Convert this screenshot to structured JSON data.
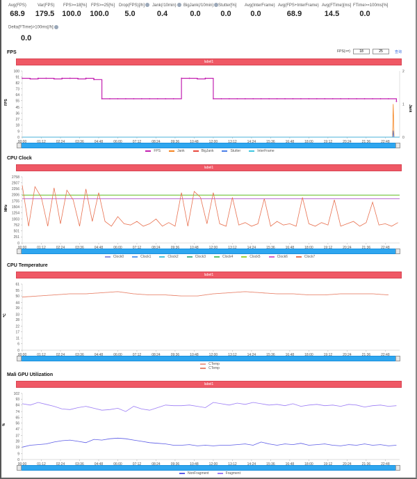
{
  "stats": [
    {
      "label": "Avg(FPS)",
      "value": "68.9",
      "info": false
    },
    {
      "label": "Var(FPS)",
      "value": "179.5",
      "info": false
    },
    {
      "label": "FPS>=18[%]",
      "value": "100.0",
      "info": false
    },
    {
      "label": "FPS>=25[%]",
      "value": "100.0",
      "info": false
    },
    {
      "label": "Drop(FPS)[/h]",
      "value": "5.0",
      "info": true
    },
    {
      "label": "Jank(/10min)",
      "value": "0.4",
      "info": true
    },
    {
      "label": "BigJank(/10min)",
      "value": "0.0",
      "info": true
    },
    {
      "label": "Stutter[%]",
      "value": "0.0",
      "info": false
    },
    {
      "label": "Avg(InterFrame)",
      "value": "0.0",
      "info": false
    },
    {
      "label": "Avg(FPS+InterFrame)",
      "value": "68.9",
      "info": false
    },
    {
      "label": "Avg(FTime)[ms]",
      "value": "14.5",
      "info": false
    },
    {
      "label": "FTime>=100ms[%]",
      "value": "0.0",
      "info": false
    }
  ],
  "delta": {
    "label": "Delta(FTime)>100ms[/h]",
    "value": "0.0"
  },
  "fps_control": {
    "label": "FPS(>=)",
    "value1": "18",
    "value2": "25",
    "link": "查询"
  },
  "chart_data": [
    {
      "type": "line",
      "title": "FPS",
      "band_label": "label1",
      "ylabel": "FPS",
      "ylim": [
        0,
        100
      ],
      "yticks": [
        0,
        9,
        18,
        27,
        36,
        45,
        55,
        64,
        73,
        82,
        91,
        100
      ],
      "y2label": "Jank",
      "y2lim": [
        0,
        2
      ],
      "y2ticks": [
        0,
        1,
        2
      ],
      "xlim": [
        0,
        1422
      ],
      "xstep": 30,
      "xticks": [
        "00:00",
        "01:12",
        "02:24",
        "03:36",
        "04:48",
        "06:00",
        "07:12",
        "08:24",
        "09:36",
        "10:48",
        "12:00",
        "13:12",
        "14:24",
        "15:36",
        "16:48",
        "18:00",
        "19:12",
        "20:24",
        "21:36",
        "22:48"
      ],
      "series": [
        {
          "name": "FPS",
          "color": "#c21fb0",
          "marker": true,
          "values": [
            89,
            88,
            89,
            89,
            88,
            89,
            89,
            88,
            89,
            87,
            58,
            58,
            58,
            58,
            58,
            58,
            58,
            58,
            58,
            58,
            89,
            89,
            88,
            89,
            58,
            58,
            58,
            58,
            58,
            58,
            58,
            58,
            58,
            58,
            58,
            58,
            58,
            58,
            58,
            58,
            58,
            58,
            58,
            58,
            58,
            58,
            58,
            54
          ]
        },
        {
          "name": "Jank",
          "color": "#f5841f",
          "axis": "y2",
          "x": [
            0,
            1395,
            1398,
            1401,
            1422
          ],
          "values": [
            0,
            0,
            1,
            0,
            0
          ]
        },
        {
          "name": "BigJank",
          "color": "#e8473c",
          "axis": "y2",
          "x": [
            0,
            1422
          ],
          "values": [
            0,
            0
          ]
        },
        {
          "name": "Stutter",
          "color": "#4a7de8",
          "axis": "y2",
          "x": [
            0,
            1396,
            1398,
            1400,
            1422
          ],
          "values": [
            0,
            0,
            0.2,
            0,
            0
          ]
        },
        {
          "name": "InterFrame",
          "color": "#3ec6e0",
          "axis": "y2",
          "x": [
            0,
            1422
          ],
          "values": [
            0,
            0
          ]
        }
      ]
    },
    {
      "type": "line",
      "title": "CPU Clock",
      "band_label": "label1",
      "ylabel": "MHz",
      "ylim": [
        0,
        2758
      ],
      "yticks": [
        0,
        251,
        501,
        752,
        1003,
        1254,
        1504,
        1755,
        2006,
        2256,
        2507,
        2758
      ],
      "xlim": [
        0,
        1422
      ],
      "xstep": 24,
      "xticks": [
        "00:00",
        "01:12",
        "02:24",
        "03:36",
        "04:48",
        "06:00",
        "07:12",
        "08:24",
        "09:36",
        "10:48",
        "12:00",
        "13:12",
        "14:24",
        "15:36",
        "16:48",
        "18:00",
        "19:12",
        "20:24",
        "21:36",
        "22:48"
      ],
      "series": [
        {
          "name": "Clock0",
          "color": "#8f8fe0",
          "x": [
            0,
            1422
          ],
          "values": [
            1843,
            1843
          ]
        },
        {
          "name": "Clock1",
          "color": "#5b9cf0",
          "x": [
            0,
            1422
          ],
          "values": [
            1843,
            1843
          ]
        },
        {
          "name": "Clock2",
          "color": "#4cc3d9",
          "x": [
            0,
            1422
          ],
          "values": [
            1995,
            1995
          ]
        },
        {
          "name": "Clock3",
          "color": "#4db38a",
          "x": [
            0,
            1422
          ],
          "values": [
            1995,
            1995
          ]
        },
        {
          "name": "Clock4",
          "color": "#5cc46a",
          "x": [
            0,
            1422
          ],
          "values": [
            1995,
            1995
          ]
        },
        {
          "name": "Clock5",
          "color": "#9bd23a",
          "x": [
            0,
            1422
          ],
          "values": [
            1995,
            1995
          ]
        },
        {
          "name": "Clock6",
          "color": "#d65fc9",
          "x": [
            0,
            1422
          ],
          "values": [
            1843,
            1843
          ]
        },
        {
          "name": "Clock7",
          "color": "#e8704f",
          "values": [
            2400,
            700,
            2350,
            1900,
            700,
            2300,
            800,
            2200,
            1800,
            700,
            2250,
            900,
            2100,
            900,
            700,
            1100,
            800,
            750,
            900,
            700,
            800,
            1000,
            700,
            850,
            700,
            2100,
            700,
            2150,
            1900,
            800,
            2100,
            800,
            700,
            1900,
            750,
            850,
            700,
            800,
            1850,
            700,
            900,
            750,
            800,
            700,
            1900,
            800,
            700,
            850,
            750,
            1800,
            700,
            800,
            900,
            700,
            850,
            1700,
            750,
            800,
            700,
            850
          ]
        }
      ]
    },
    {
      "type": "line",
      "title": "CPU Temperature",
      "band_label": "label1",
      "ylabel": "℃",
      "ylim": [
        0,
        61
      ],
      "yticks": [
        0,
        6,
        11,
        17,
        22,
        28,
        33,
        39,
        44,
        50,
        55,
        61
      ],
      "xlim": [
        0,
        1422
      ],
      "xstep": 60,
      "legend_stack": true,
      "xticks": [
        "00:00",
        "01:12",
        "02:24",
        "03:36",
        "04:48",
        "06:00",
        "07:12",
        "08:24",
        "09:36",
        "10:48",
        "12:00",
        "13:12",
        "14:24",
        "15:36",
        "16:48",
        "18:00",
        "19:12",
        "20:24",
        "21:36",
        "22:48"
      ],
      "series": [
        {
          "name": "CTemp",
          "color": "#f0a090",
          "values": [
            49,
            50,
            51,
            52,
            52,
            53,
            54,
            52,
            51,
            51,
            50,
            50,
            52,
            53,
            54,
            53,
            52,
            52,
            51,
            51,
            52,
            52,
            52,
            51
          ]
        },
        {
          "name": "CTemp",
          "color": "#e8876f",
          "values": [
            49,
            50,
            51,
            52,
            52,
            53,
            54,
            52,
            51,
            51,
            50,
            50,
            52,
            53,
            54,
            53,
            52,
            52,
            51,
            51,
            52,
            52,
            52,
            51
          ]
        }
      ]
    },
    {
      "type": "line",
      "title": "Mali GPU Utilization",
      "band_label": "label1",
      "ylabel": "%",
      "ylim": [
        0,
        102
      ],
      "yticks": [
        0,
        9,
        19,
        28,
        37,
        47,
        56,
        65,
        74,
        84,
        93,
        102
      ],
      "xlim": [
        0,
        1422
      ],
      "xstep": 30,
      "xticks": [
        "00:00",
        "01:12",
        "02:24",
        "03:36",
        "04:48",
        "06:00",
        "07:12",
        "08:24",
        "09:36",
        "10:48",
        "12:00",
        "13:12",
        "14:24",
        "15:36",
        "16:48",
        "18:00",
        "19:12",
        "20:24",
        "21:36",
        "22:48"
      ],
      "series": [
        {
          "name": "NonFragment",
          "color": "#5a5ae6",
          "values": [
            19,
            22,
            23,
            24,
            27,
            29,
            30,
            28,
            26,
            31,
            30,
            32,
            33,
            32,
            30,
            28,
            26,
            25,
            24,
            22,
            22,
            23,
            21,
            22,
            21,
            22,
            22,
            23,
            24,
            22,
            27,
            24,
            22,
            24,
            23,
            25,
            22,
            23,
            24,
            22,
            21,
            23,
            22,
            24,
            22,
            23,
            21,
            22
          ]
        },
        {
          "name": "Fragment",
          "color": "#9b7cf5",
          "values": [
            86,
            84,
            88,
            85,
            82,
            78,
            77,
            80,
            82,
            79,
            76,
            77,
            79,
            74,
            82,
            78,
            76,
            80,
            84,
            83,
            83,
            84,
            82,
            80,
            88,
            86,
            84,
            87,
            85,
            88,
            86,
            84,
            85,
            83,
            86,
            82,
            84,
            85,
            83,
            84,
            82,
            85,
            84,
            81,
            83,
            84,
            82,
            83
          ]
        }
      ]
    }
  ]
}
